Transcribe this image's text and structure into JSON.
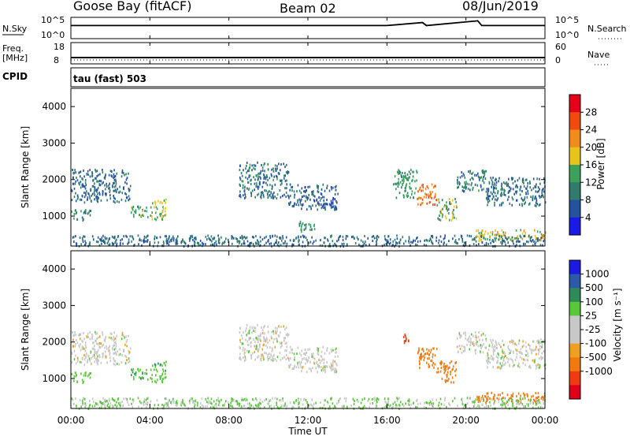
{
  "header": {
    "station": "Goose Bay (fitACF)",
    "beam": "Beam 02",
    "date": "08/Jun/2019"
  },
  "aux": {
    "nsky_label": "N.Sky",
    "nsky_ticks": [
      "10^5",
      "10^0"
    ],
    "nsearch_label": "N.Search",
    "nsearch_ticks": [
      "10^5",
      "10^0"
    ],
    "freq_label": "Freq.",
    "freq_unit": "[MHz]",
    "freq_ticks": [
      "18",
      "8"
    ],
    "nave_label": "Nave",
    "nave_ticks": [
      "60",
      "0"
    ],
    "cpid_label": "CPID",
    "cpid_value": "tau (fast) 503"
  },
  "axes": {
    "xlabel": "Time UT",
    "xticks": [
      "00:00",
      "04:00",
      "08:00",
      "12:00",
      "16:00",
      "20:00",
      "00:00"
    ],
    "ylabel": "Slant Range [km]",
    "yticks": [
      "4000",
      "3000",
      "2000",
      "1000"
    ]
  },
  "power_scale": {
    "label": "Power [dB]",
    "ticks": [
      "28",
      "24",
      "20",
      "16",
      "12",
      "8",
      "4"
    ],
    "colors": [
      "#e8001a",
      "#f04a10",
      "#f08c1c",
      "#e8c41a",
      "#3ca25a",
      "#2f7b6c",
      "#25529e",
      "#1a1ae8"
    ]
  },
  "velocity_scale": {
    "label": "Velocity [m s⁻¹]",
    "ticks": [
      "1000",
      "500",
      "100",
      "25",
      "-25",
      "-100",
      "-500",
      "-1000"
    ],
    "colors": [
      "#1a1ae0",
      "#2a5aa8",
      "#2f8a5a",
      "#58c838",
      "#c8c8c8",
      "#c8c8c8",
      "#f0a020",
      "#f07a10",
      "#f03a10",
      "#e0001a"
    ]
  },
  "chart_data": [
    {
      "type": "line",
      "title": "N.Sky / N.Search",
      "x": [
        0,
        4,
        8,
        12,
        16,
        17.8,
        18,
        20.6,
        20.8,
        24
      ],
      "values": [
        1500,
        1500,
        1500,
        1500,
        1500,
        10000,
        1500,
        30000,
        1500,
        1500
      ],
      "xlim": [
        0,
        24
      ],
      "ylim": [
        1,
        100000
      ],
      "scale": "log"
    },
    {
      "type": "line",
      "title": "Freq. / Nave",
      "x": [
        0,
        24
      ],
      "series": [
        {
          "name": "Freq.",
          "values": [
            10.5,
            10.5
          ]
        },
        {
          "name": "Nave",
          "values": [
            14,
            14
          ]
        }
      ],
      "xlim": [
        0,
        24
      ]
    },
    {
      "type": "heatmap",
      "title": "Power",
      "xlim": [
        0,
        24
      ],
      "ylim": [
        180,
        4500
      ],
      "colorbar": "Power [dB]",
      "regions": [
        {
          "t0": 0.0,
          "t1": 3.0,
          "r0": 1400,
          "r1": 2300,
          "value": 8
        },
        {
          "t0": 0.0,
          "t1": 1.0,
          "r0": 900,
          "r1": 1200,
          "value": 10
        },
        {
          "t0": 3.0,
          "t1": 4.0,
          "r0": 1000,
          "r1": 1300,
          "value": 14
        },
        {
          "t0": 4.0,
          "t1": 4.8,
          "r0": 900,
          "r1": 1500,
          "value": 16
        },
        {
          "t0": 8.5,
          "t1": 11.0,
          "r0": 1500,
          "r1": 2500,
          "value": 9
        },
        {
          "t0": 11.0,
          "t1": 13.5,
          "r0": 1200,
          "r1": 1900,
          "value": 7
        },
        {
          "t0": 11.5,
          "t1": 12.5,
          "r0": 600,
          "r1": 900,
          "value": 12
        },
        {
          "t0": 16.3,
          "t1": 17.5,
          "r0": 1500,
          "r1": 2300,
          "value": 12
        },
        {
          "t0": 17.5,
          "t1": 18.5,
          "r0": 1300,
          "r1": 1900,
          "value": 24
        },
        {
          "t0": 18.5,
          "t1": 19.5,
          "r0": 900,
          "r1": 1500,
          "value": 14
        },
        {
          "t0": 19.5,
          "t1": 21.0,
          "r0": 1700,
          "r1": 2300,
          "value": 10
        },
        {
          "t0": 21.0,
          "t1": 24.0,
          "r0": 1300,
          "r1": 2100,
          "value": 8
        },
        {
          "t0": 20.5,
          "t1": 24.0,
          "r0": 350,
          "r1": 650,
          "value": 18
        },
        {
          "t0": 0.0,
          "t1": 24.0,
          "r0": 200,
          "r1": 500,
          "value": 8
        }
      ]
    },
    {
      "type": "heatmap",
      "title": "Velocity",
      "xlim": [
        0,
        24
      ],
      "ylim": [
        180,
        4500
      ],
      "colorbar": "Velocity [m s⁻¹]",
      "regions": [
        {
          "t0": 0.0,
          "t1": 3.0,
          "r0": 1400,
          "r1": 2300,
          "value": 0
        },
        {
          "t0": 0.0,
          "t1": 1.0,
          "r0": 900,
          "r1": 1200,
          "value": 50
        },
        {
          "t0": 3.0,
          "t1": 4.0,
          "r0": 1000,
          "r1": 1300,
          "value": 100
        },
        {
          "t0": 4.0,
          "t1": 4.8,
          "r0": 900,
          "r1": 1500,
          "value": 80
        },
        {
          "t0": 8.5,
          "t1": 11.0,
          "r0": 1500,
          "r1": 2500,
          "value": 0
        },
        {
          "t0": 11.0,
          "t1": 13.5,
          "r0": 1200,
          "r1": 1900,
          "value": 0
        },
        {
          "t0": 16.8,
          "t1": 17.2,
          "r0": 2000,
          "r1": 2300,
          "value": -600
        },
        {
          "t0": 17.5,
          "t1": 18.5,
          "r0": 1300,
          "r1": 1900,
          "value": -200
        },
        {
          "t0": 18.5,
          "t1": 19.5,
          "r0": 900,
          "r1": 1500,
          "value": -400
        },
        {
          "t0": 19.5,
          "t1": 21.0,
          "r0": 1700,
          "r1": 2300,
          "value": 0
        },
        {
          "t0": 21.0,
          "t1": 24.0,
          "r0": 1300,
          "r1": 2100,
          "value": 0
        },
        {
          "t0": 20.5,
          "t1": 24.0,
          "r0": 350,
          "r1": 650,
          "value": -200
        },
        {
          "t0": 0.0,
          "t1": 24.0,
          "r0": 200,
          "r1": 500,
          "value": 30
        }
      ]
    }
  ]
}
